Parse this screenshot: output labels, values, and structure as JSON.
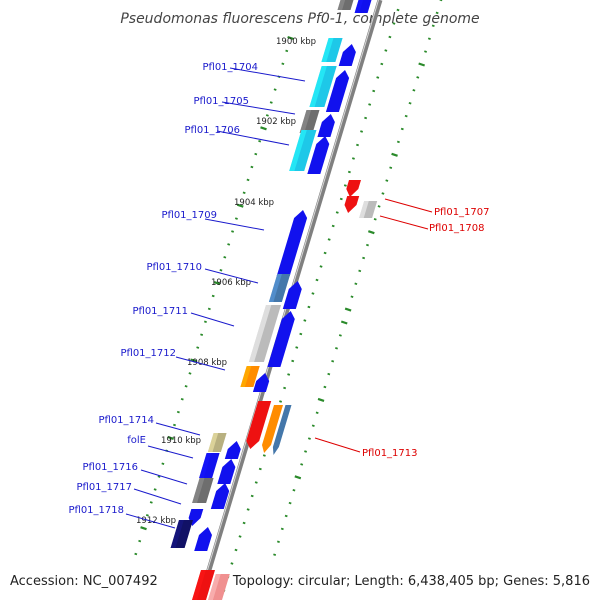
{
  "title": "Pseudomonas fluorescens Pf0-1, complete genome",
  "footer": {
    "accession": "Accession: NC_007492",
    "summary": "Topology: circular; Length: 6,438,405 bp; Genes: 5,816"
  },
  "colors": {
    "forward_label": "#1a1acc",
    "reverse_label": "#dd0000",
    "backbone": "#808080",
    "tick": "#2a8a2a",
    "blue": "#1111ee",
    "cyan": "#1ec8e8",
    "grey": "#6e6e6e",
    "steel": "#4477aa",
    "silver": "#bbbbbb",
    "orange": "#ff8c00",
    "red": "#ee1111",
    "khaki": "#b8b080",
    "navy": "#111166"
  },
  "kbp_labels": [
    "1900 kbp",
    "1902 kbp",
    "1904 kbp",
    "1906 kbp",
    "1908 kbp",
    "1910 kbp",
    "1912 kbp"
  ],
  "gene_labels": [
    {
      "text": "Pfl01_1704",
      "strand": "forward"
    },
    {
      "text": "Pfl01_1705",
      "strand": "forward"
    },
    {
      "text": "Pfl01_1706",
      "strand": "forward"
    },
    {
      "text": "Pfl01_1709",
      "strand": "forward"
    },
    {
      "text": "Pfl01_1710",
      "strand": "forward"
    },
    {
      "text": "Pfl01_1711",
      "strand": "forward"
    },
    {
      "text": "Pfl01_1712",
      "strand": "forward"
    },
    {
      "text": "Pfl01_1714",
      "strand": "forward"
    },
    {
      "text": "folE",
      "strand": "forward"
    },
    {
      "text": "Pfl01_1716",
      "strand": "forward"
    },
    {
      "text": "Pfl01_1717",
      "strand": "forward"
    },
    {
      "text": "Pfl01_1718",
      "strand": "forward"
    },
    {
      "text": "Pfl01_1707",
      "strand": "reverse"
    },
    {
      "text": "Pfl01_1708",
      "strand": "reverse"
    },
    {
      "text": "Pfl01_1713",
      "strand": "reverse"
    }
  ]
}
